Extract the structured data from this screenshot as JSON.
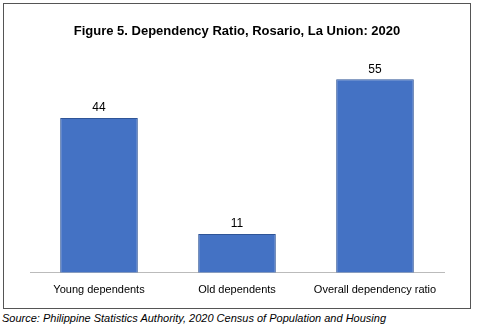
{
  "chart_data": {
    "type": "bar",
    "title": "Figure 5. Dependency Ratio, Rosario, La Union: 2020",
    "categories": [
      "Young dependents",
      "Old dependents",
      "Overall dependency ratio"
    ],
    "values": [
      44,
      11,
      55
    ],
    "color": "#4472c4",
    "data_labels": true,
    "tick_labels": "x",
    "grid": false
  },
  "source": "Source: Philippine Statistics Authority, 2020 Census of Population and Housing"
}
